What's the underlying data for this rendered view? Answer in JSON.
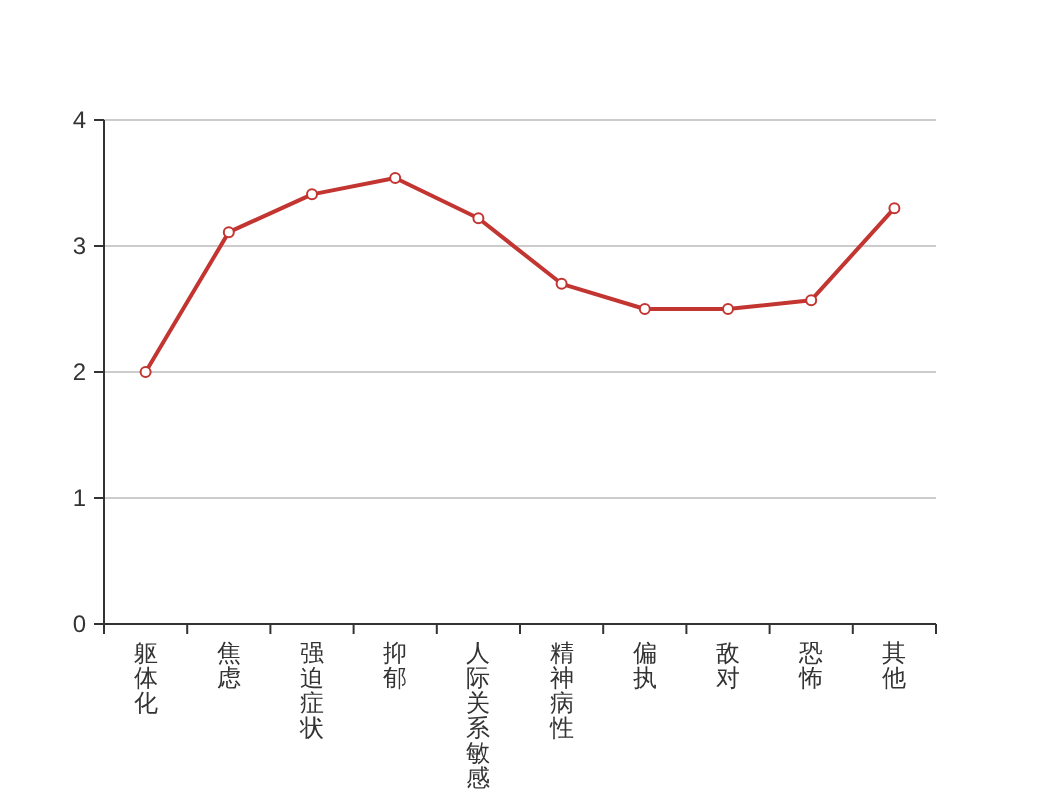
{
  "chart_data": {
    "type": "line",
    "categories": [
      "躯体化",
      "焦虑",
      "强迫症状",
      "抑郁",
      "人际关系敏感",
      "精神病性",
      "偏执",
      "敌对",
      "恐怖",
      "其他"
    ],
    "series": [
      {
        "color": "#c23531",
        "values": [
          2.0,
          3.11,
          3.41,
          3.54,
          3.22,
          2.7,
          2.5,
          2.5,
          2.57,
          3.3
        ]
      }
    ],
    "ylim": [
      0,
      4
    ],
    "yticks": [
      0,
      1,
      2,
      3,
      4
    ],
    "grid": "y",
    "marker": "circle",
    "line_style": "solid"
  }
}
